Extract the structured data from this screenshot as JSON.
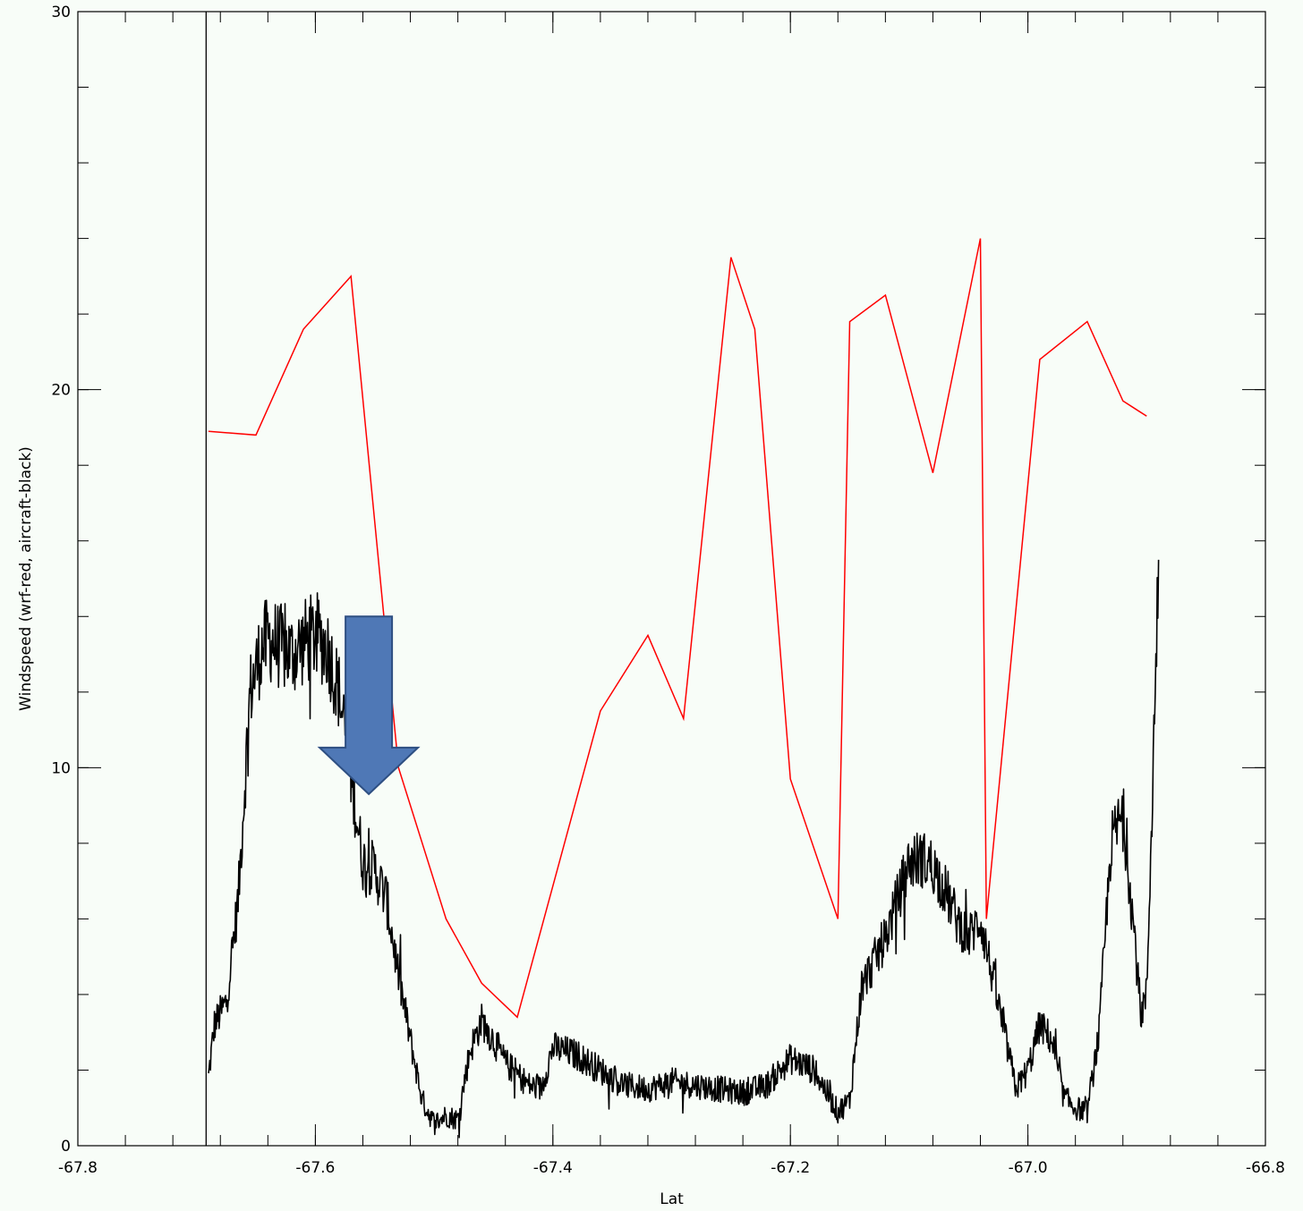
{
  "chart_data": {
    "type": "line",
    "xlabel": "Lat",
    "ylabel": "Windspeed (wrf-red, aircraft-black)",
    "xlim": [
      -67.8,
      -66.8
    ],
    "ylim": [
      0,
      30
    ],
    "x_ticks": [
      -67.8,
      -67.6,
      -67.4,
      -67.2,
      -67.0,
      -66.8
    ],
    "x_tick_labels": [
      "-67.8",
      "-67.6",
      "-67.4",
      "-67.2",
      "-67.0",
      "-66.8"
    ],
    "y_ticks": [
      0,
      10,
      20,
      30
    ],
    "y_tick_labels": [
      "0",
      "10",
      "20",
      "30"
    ],
    "x_minor_step": 0.04,
    "y_minor_step": 2,
    "vertical_reference_line_x": -67.692,
    "grid": false,
    "series": [
      {
        "color": "#ff0000",
        "style": "line",
        "x": [
          -67.69,
          -67.65,
          -67.61,
          -67.57,
          -67.53,
          -67.49,
          -67.46,
          -67.43,
          -67.36,
          -67.32,
          -67.29,
          -67.25,
          -67.23,
          -67.2,
          -67.16,
          -67.15,
          -67.12,
          -67.08,
          -67.04,
          -67.035,
          -66.99,
          -66.95,
          -66.92,
          -66.9
        ],
        "y": [
          18.9,
          18.8,
          21.6,
          23.0,
          10.0,
          6.0,
          4.3,
          3.4,
          11.5,
          13.5,
          11.3,
          23.5,
          21.6,
          9.7,
          6.0,
          21.8,
          22.5,
          17.8,
          24.0,
          6.0,
          20.8,
          21.8,
          19.7,
          19.3
        ]
      },
      {
        "color": "#000000",
        "style": "noisy-line",
        "x": [
          -67.69,
          -67.685,
          -67.675,
          -67.665,
          -67.655,
          -67.645,
          -67.638,
          -67.63,
          -67.62,
          -67.61,
          -67.6,
          -67.59,
          -67.58,
          -67.57,
          -67.56,
          -67.55,
          -67.54,
          -67.53,
          -67.52,
          -67.51,
          -67.5,
          -67.49,
          -67.48,
          -67.47,
          -67.46,
          -67.45,
          -67.44,
          -67.43,
          -67.42,
          -67.41,
          -67.4,
          -67.38,
          -67.36,
          -67.34,
          -67.32,
          -67.3,
          -67.28,
          -67.26,
          -67.24,
          -67.22,
          -67.2,
          -67.18,
          -67.16,
          -67.15,
          -67.14,
          -67.12,
          -67.1,
          -67.09,
          -67.08,
          -67.07,
          -67.06,
          -67.05,
          -67.04,
          -67.03,
          -67.02,
          -67.01,
          -67.0,
          -66.99,
          -66.98,
          -66.97,
          -66.96,
          -66.95,
          -66.94,
          -66.93,
          -66.92,
          -66.91,
          -66.905,
          -66.9,
          -66.895,
          -66.89
        ],
        "y": [
          1.8,
          3.2,
          3.8,
          6.5,
          12.0,
          13.2,
          13.4,
          13.2,
          13.0,
          13.3,
          13.5,
          13.2,
          12.0,
          9.8,
          7.5,
          7.3,
          6.5,
          4.5,
          2.8,
          1.2,
          0.6,
          0.8,
          0.7,
          2.5,
          3.3,
          2.8,
          2.2,
          1.9,
          1.6,
          1.5,
          2.6,
          2.4,
          2.0,
          1.6,
          1.5,
          1.7,
          1.6,
          1.5,
          1.4,
          1.6,
          2.3,
          2.0,
          0.9,
          1.2,
          4.2,
          5.5,
          7.5,
          7.6,
          7.4,
          6.8,
          6.0,
          5.5,
          6.0,
          4.5,
          3.0,
          1.5,
          2.0,
          3.2,
          2.8,
          1.3,
          1.0,
          0.9,
          3.0,
          8.0,
          8.8,
          5.5,
          3.5,
          4.0,
          9.5,
          15.5
        ]
      }
    ],
    "annotation": {
      "type": "arrow-down",
      "color": "#4f78b6",
      "x": -67.555,
      "y_top": 14.0,
      "y_tip": 9.3
    }
  }
}
